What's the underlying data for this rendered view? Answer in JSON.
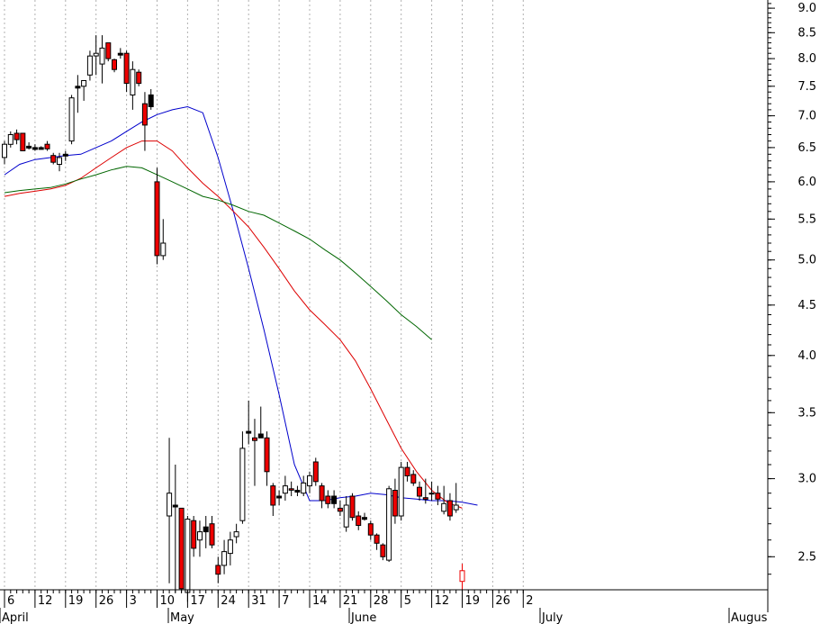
{
  "chart_data": {
    "type": "candlestick",
    "y_scale": "log",
    "ylim": [
      2.1,
      10.0
    ],
    "y_ticks": [
      "2.5",
      "3.0",
      "3.5",
      "4.0",
      "4.5",
      "5.0",
      "5.5",
      "6.0",
      "6.5",
      "7.0",
      "7.5",
      "8.0",
      "8.5",
      "9.0"
    ],
    "x_tick_labels": [
      "6",
      "12",
      "19",
      "26",
      "3",
      "10",
      "17",
      "24",
      "31",
      "7",
      "14",
      "21",
      "28",
      "5",
      "12",
      "19",
      "26",
      "2"
    ],
    "month_labels": [
      "April",
      "May",
      "June",
      "July",
      "Augus"
    ],
    "grid": true,
    "colors": {
      "up_fill": "#ffffff",
      "down_fill": "#ee0000",
      "black_fill": "#000000",
      "outline": "#000000",
      "ma_short": "#0000cc",
      "ma_mid": "#dd0000",
      "ma_long": "#006600",
      "grid": "#b0b0b0"
    },
    "candles": [
      {
        "o": 6.35,
        "h": 6.6,
        "l": 6.25,
        "c": 6.55,
        "s": "up"
      },
      {
        "o": 6.55,
        "h": 6.75,
        "l": 6.5,
        "c": 6.7,
        "s": "up"
      },
      {
        "o": 6.72,
        "h": 6.78,
        "l": 6.55,
        "c": 6.62,
        "s": "down"
      },
      {
        "o": 6.72,
        "h": 6.72,
        "l": 6.45,
        "c": 6.45,
        "s": "down"
      },
      {
        "o": 6.52,
        "h": 6.58,
        "l": 6.47,
        "c": 6.52,
        "s": "flat"
      },
      {
        "o": 6.5,
        "h": 6.55,
        "l": 6.45,
        "c": 6.5,
        "s": "flat"
      },
      {
        "o": 6.5,
        "h": 6.52,
        "l": 6.47,
        "c": 6.5,
        "s": "flat"
      },
      {
        "o": 6.55,
        "h": 6.6,
        "l": 6.45,
        "c": 6.48,
        "s": "down"
      },
      {
        "o": 6.38,
        "h": 6.42,
        "l": 6.25,
        "c": 6.28,
        "s": "down"
      },
      {
        "o": 6.25,
        "h": 6.42,
        "l": 6.15,
        "c": 6.35,
        "s": "up"
      },
      {
        "o": 6.38,
        "h": 6.45,
        "l": 6.3,
        "c": 6.4,
        "s": "flat"
      },
      {
        "o": 6.6,
        "h": 7.35,
        "l": 6.55,
        "c": 7.3,
        "s": "up"
      },
      {
        "o": 7.45,
        "h": 7.7,
        "l": 7.05,
        "c": 7.5,
        "s": "flat"
      },
      {
        "o": 7.5,
        "h": 7.6,
        "l": 7.25,
        "c": 7.6,
        "s": "up"
      },
      {
        "o": 7.7,
        "h": 8.15,
        "l": 7.6,
        "c": 8.05,
        "s": "up"
      },
      {
        "o": 8.05,
        "h": 8.45,
        "l": 7.7,
        "c": 8.1,
        "s": "up"
      },
      {
        "o": 7.9,
        "h": 8.45,
        "l": 7.55,
        "c": 8.2,
        "s": "up"
      },
      {
        "o": 8.3,
        "h": 8.3,
        "l": 7.95,
        "c": 8.0,
        "s": "down"
      },
      {
        "o": 7.98,
        "h": 8.0,
        "l": 7.75,
        "c": 7.8,
        "s": "down"
      },
      {
        "o": 8.05,
        "h": 8.2,
        "l": 8.0,
        "c": 8.1,
        "s": "flat"
      },
      {
        "o": 8.1,
        "h": 8.15,
        "l": 7.4,
        "c": 7.55,
        "s": "down"
      },
      {
        "o": 7.35,
        "h": 7.95,
        "l": 7.1,
        "c": 7.8,
        "s": "up"
      },
      {
        "o": 7.75,
        "h": 7.8,
        "l": 7.5,
        "c": 7.55,
        "s": "down"
      },
      {
        "o": 7.2,
        "h": 7.4,
        "l": 6.45,
        "c": 6.85,
        "s": "down"
      },
      {
        "o": 7.35,
        "h": 7.45,
        "l": 7.1,
        "c": 7.15,
        "s": "black"
      },
      {
        "o": 6.0,
        "h": 6.2,
        "l": 4.95,
        "c": 5.05,
        "s": "down"
      },
      {
        "o": 5.05,
        "h": 5.5,
        "l": 5.0,
        "c": 5.2,
        "s": "up"
      },
      {
        "o": 2.75,
        "h": 3.3,
        "l": 2.35,
        "c": 2.9,
        "s": "up"
      },
      {
        "o": 2.82,
        "h": 3.1,
        "l": 2.3,
        "c": 2.82,
        "s": "flat"
      },
      {
        "o": 2.8,
        "h": 2.8,
        "l": 2.3,
        "c": 2.32,
        "s": "down"
      },
      {
        "o": 2.3,
        "h": 2.75,
        "l": 2.25,
        "c": 2.73,
        "s": "up"
      },
      {
        "o": 2.72,
        "h": 2.75,
        "l": 2.5,
        "c": 2.55,
        "s": "down"
      },
      {
        "o": 2.6,
        "h": 2.72,
        "l": 2.5,
        "c": 2.65,
        "s": "up"
      },
      {
        "o": 2.65,
        "h": 2.75,
        "l": 2.55,
        "c": 2.68,
        "s": "black"
      },
      {
        "o": 2.7,
        "h": 2.75,
        "l": 2.55,
        "c": 2.57,
        "s": "down"
      },
      {
        "o": 2.45,
        "h": 2.5,
        "l": 2.35,
        "c": 2.4,
        "s": "down"
      },
      {
        "o": 2.45,
        "h": 2.6,
        "l": 2.4,
        "c": 2.53,
        "s": "up"
      },
      {
        "o": 2.52,
        "h": 2.65,
        "l": 2.45,
        "c": 2.6,
        "s": "up"
      },
      {
        "o": 2.62,
        "h": 2.7,
        "l": 2.58,
        "c": 2.65,
        "s": "up"
      },
      {
        "o": 2.72,
        "h": 3.35,
        "l": 2.7,
        "c": 3.22,
        "s": "up"
      },
      {
        "o": 3.35,
        "h": 3.6,
        "l": 3.25,
        "c": 3.35,
        "s": "flat"
      },
      {
        "o": 3.3,
        "h": 3.45,
        "l": 2.95,
        "c": 3.28,
        "s": "down"
      },
      {
        "o": 3.33,
        "h": 3.55,
        "l": 3.3,
        "c": 3.3,
        "s": "black"
      },
      {
        "o": 3.3,
        "h": 3.35,
        "l": 2.95,
        "c": 3.05,
        "s": "down"
      },
      {
        "o": 2.95,
        "h": 2.97,
        "l": 2.75,
        "c": 2.82,
        "s": "down"
      },
      {
        "o": 2.88,
        "h": 2.92,
        "l": 2.82,
        "c": 2.88,
        "s": "flat"
      },
      {
        "o": 2.9,
        "h": 3.02,
        "l": 2.85,
        "c": 2.95,
        "s": "up"
      },
      {
        "o": 2.93,
        "h": 2.98,
        "l": 2.88,
        "c": 2.92,
        "s": "down"
      },
      {
        "o": 2.92,
        "h": 2.95,
        "l": 2.88,
        "c": 2.92,
        "s": "flat"
      },
      {
        "o": 2.9,
        "h": 3.02,
        "l": 2.88,
        "c": 2.97,
        "s": "up"
      },
      {
        "o": 2.95,
        "h": 3.05,
        "l": 2.9,
        "c": 3.02,
        "s": "up"
      },
      {
        "o": 3.12,
        "h": 3.15,
        "l": 2.95,
        "c": 2.98,
        "s": "down"
      },
      {
        "o": 2.95,
        "h": 2.97,
        "l": 2.8,
        "c": 2.85,
        "s": "down"
      },
      {
        "o": 2.83,
        "h": 2.92,
        "l": 2.8,
        "c": 2.88,
        "s": "down"
      },
      {
        "o": 2.88,
        "h": 2.92,
        "l": 2.8,
        "c": 2.83,
        "s": "black"
      },
      {
        "o": 2.8,
        "h": 2.85,
        "l": 2.75,
        "c": 2.78,
        "s": "down"
      },
      {
        "o": 2.68,
        "h": 2.88,
        "l": 2.65,
        "c": 2.82,
        "s": "up"
      },
      {
        "o": 2.88,
        "h": 2.9,
        "l": 2.72,
        "c": 2.74,
        "s": "down"
      },
      {
        "o": 2.75,
        "h": 2.78,
        "l": 2.66,
        "c": 2.69,
        "s": "down"
      },
      {
        "o": 2.74,
        "h": 2.77,
        "l": 2.72,
        "c": 2.74,
        "s": "flat"
      },
      {
        "o": 2.7,
        "h": 2.72,
        "l": 2.6,
        "c": 2.63,
        "s": "down"
      },
      {
        "o": 2.63,
        "h": 2.64,
        "l": 2.54,
        "c": 2.58,
        "s": "down"
      },
      {
        "o": 2.57,
        "h": 2.58,
        "l": 2.48,
        "c": 2.5,
        "s": "down"
      },
      {
        "o": 2.48,
        "h": 2.95,
        "l": 2.47,
        "c": 2.93,
        "s": "up"
      },
      {
        "o": 2.92,
        "h": 3.0,
        "l": 2.7,
        "c": 2.75,
        "s": "down"
      },
      {
        "o": 2.75,
        "h": 3.12,
        "l": 2.72,
        "c": 3.08,
        "s": "up"
      },
      {
        "o": 3.08,
        "h": 3.12,
        "l": 2.98,
        "c": 3.02,
        "s": "down"
      },
      {
        "o": 3.03,
        "h": 3.06,
        "l": 2.95,
        "c": 2.97,
        "s": "down"
      },
      {
        "o": 2.94,
        "h": 2.98,
        "l": 2.85,
        "c": 2.88,
        "s": "down"
      },
      {
        "o": 2.86,
        "h": 3.0,
        "l": 2.83,
        "c": 2.87,
        "s": "down"
      },
      {
        "o": 2.9,
        "h": 2.98,
        "l": 2.85,
        "c": 2.9,
        "s": "down"
      },
      {
        "o": 2.9,
        "h": 2.95,
        "l": 2.82,
        "c": 2.86,
        "s": "down"
      },
      {
        "o": 2.78,
        "h": 2.95,
        "l": 2.76,
        "c": 2.83,
        "s": "up"
      },
      {
        "o": 2.85,
        "h": 2.9,
        "l": 2.72,
        "c": 2.75,
        "s": "down"
      },
      {
        "o": 2.79,
        "h": 2.97,
        "l": 2.77,
        "c": 2.82,
        "s": "up"
      },
      {
        "o": 2.42,
        "h": 2.46,
        "l": 2.26,
        "c": 2.36,
        "s": "down_outline"
      }
    ],
    "series": [
      {
        "values": [
          6.1,
          6.25,
          6.32,
          6.35,
          6.38,
          6.4,
          6.5,
          6.6,
          6.75,
          6.9,
          7.02,
          7.1,
          7.15,
          7.05,
          6.35,
          5.6,
          4.9,
          4.25,
          3.65,
          3.1,
          2.85,
          2.85,
          2.87,
          2.88,
          2.9,
          2.89,
          2.87,
          2.86,
          2.85,
          2.85,
          2.84,
          2.82
        ]
      },
      {
        "values": [
          5.8,
          5.84,
          5.87,
          5.9,
          5.95,
          6.05,
          6.2,
          6.35,
          6.5,
          6.6,
          6.6,
          6.45,
          6.2,
          5.98,
          5.8,
          5.6,
          5.4,
          5.15,
          4.9,
          4.65,
          4.45,
          4.3,
          4.15,
          3.95,
          3.7,
          3.45,
          3.22,
          3.05,
          2.92,
          2.84,
          2.8
        ]
      },
      {
        "values": [
          5.85,
          5.88,
          5.9,
          5.92,
          5.97,
          6.04,
          6.1,
          6.17,
          6.22,
          6.2,
          6.1,
          6.0,
          5.9,
          5.8,
          5.75,
          5.68,
          5.6,
          5.55,
          5.45,
          5.35,
          5.25,
          5.12,
          5.0,
          4.85,
          4.7,
          4.55,
          4.4,
          4.28,
          4.15
        ]
      }
    ]
  }
}
